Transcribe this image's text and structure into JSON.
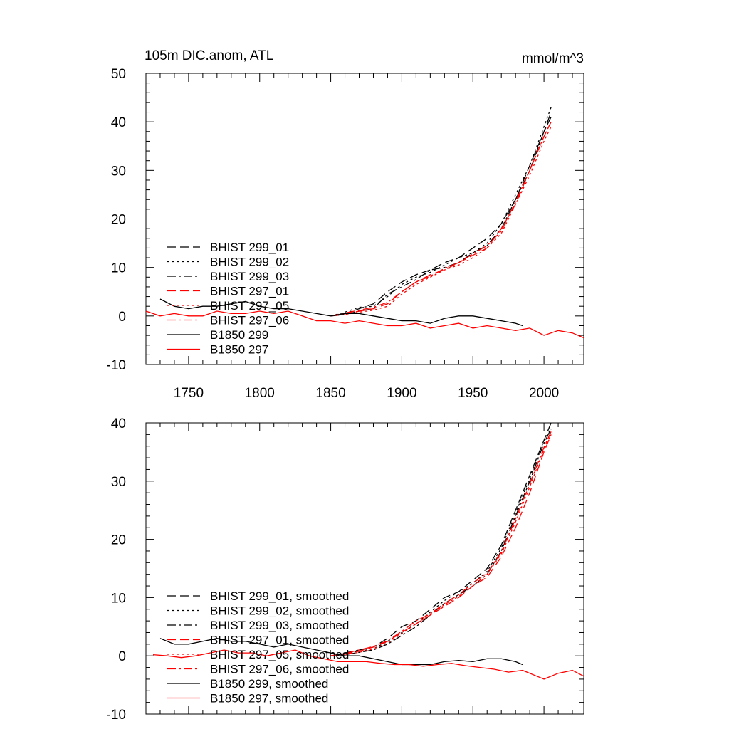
{
  "chart_data": [
    {
      "type": "line",
      "title": "105m DIC.anom, ATL",
      "units": "mmol/m^3",
      "xlim": [
        1720,
        2028
      ],
      "ylim": [
        -10,
        50
      ],
      "xticks": [
        1750,
        1800,
        1850,
        1900,
        1950,
        2000
      ],
      "xtick_labels": [
        "1750",
        "1800",
        "1850",
        "1900",
        "1950",
        "2000"
      ],
      "yticks": [
        -10,
        0,
        10,
        20,
        30,
        40,
        50
      ],
      "ytick_labels": [
        "-10",
        "0",
        "10",
        "20",
        "30",
        "40",
        "50"
      ],
      "legend_position": "left",
      "series": [
        {
          "name": "BHIST 299_01",
          "color": "#000000",
          "style": "dash",
          "x": [
            1850,
            1860,
            1870,
            1880,
            1890,
            1900,
            1910,
            1920,
            1930,
            1940,
            1950,
            1960,
            1970,
            1980,
            1990,
            2000,
            2005
          ],
          "y": [
            0,
            0.5,
            1.5,
            2.5,
            5,
            7,
            8.5,
            9.5,
            11,
            12,
            14,
            16,
            19,
            24,
            31,
            38,
            42
          ]
        },
        {
          "name": "BHIST 299_02",
          "color": "#000000",
          "style": "dot",
          "x": [
            1850,
            1860,
            1870,
            1880,
            1890,
            1900,
            1910,
            1920,
            1930,
            1940,
            1950,
            1960,
            1970,
            1980,
            1990,
            2000,
            2005
          ],
          "y": [
            0,
            0.8,
            1.8,
            2,
            4,
            6.5,
            8,
            9,
            10.5,
            12,
            13,
            15,
            19,
            25,
            31,
            39,
            43
          ]
        },
        {
          "name": "BHIST 299_03",
          "color": "#000000",
          "style": "dashdot",
          "x": [
            1850,
            1860,
            1870,
            1880,
            1890,
            1900,
            1910,
            1920,
            1930,
            1940,
            1950,
            1960,
            1970,
            1980,
            1990,
            2000,
            2005
          ],
          "y": [
            0,
            0.3,
            1,
            1.5,
            4.5,
            6,
            7.5,
            9.5,
            10,
            11,
            13,
            14.5,
            18,
            24,
            30,
            38,
            41
          ]
        },
        {
          "name": "BHIST 297_01",
          "color": "#ff0000",
          "style": "dash",
          "x": [
            1850,
            1860,
            1870,
            1880,
            1890,
            1900,
            1910,
            1920,
            1930,
            1940,
            1950,
            1960,
            1970,
            1980,
            1990,
            2000,
            2005
          ],
          "y": [
            0,
            0.5,
            1,
            1.5,
            2.5,
            5,
            7,
            8.5,
            9.5,
            11,
            12.5,
            14,
            18,
            23,
            30,
            37,
            40
          ]
        },
        {
          "name": "BHIST 297_05",
          "color": "#ff0000",
          "style": "dot",
          "x": [
            1850,
            1860,
            1870,
            1880,
            1890,
            1900,
            1910,
            1920,
            1930,
            1940,
            1950,
            1960,
            1970,
            1980,
            1990,
            2000,
            2005
          ],
          "y": [
            0,
            0.3,
            0.8,
            1.2,
            2,
            4.5,
            6.5,
            8,
            9.5,
            10.5,
            12,
            14,
            17,
            23,
            29,
            36,
            39
          ]
        },
        {
          "name": "BHIST 297_06",
          "color": "#ff0000",
          "style": "dashdot",
          "x": [
            1850,
            1860,
            1870,
            1880,
            1890,
            1900,
            1910,
            1920,
            1930,
            1940,
            1950,
            1960,
            1970,
            1980,
            1990,
            2000,
            2005
          ],
          "y": [
            0,
            0.6,
            1.2,
            1.8,
            2.8,
            5,
            7,
            8.2,
            9.8,
            11,
            12.8,
            14.5,
            17.5,
            23.5,
            30,
            37,
            40
          ]
        },
        {
          "name": "B1850 299",
          "color": "#000000",
          "style": "solid",
          "x": [
            1730,
            1740,
            1750,
            1760,
            1770,
            1780,
            1790,
            1800,
            1810,
            1820,
            1830,
            1840,
            1850,
            1860,
            1870,
            1880,
            1890,
            1900,
            1910,
            1920,
            1930,
            1940,
            1950,
            1960,
            1970,
            1980,
            1985
          ],
          "y": [
            3.5,
            2,
            1.5,
            2,
            2,
            2.5,
            3,
            2,
            1.5,
            1.5,
            1,
            0.5,
            0,
            0.5,
            0.5,
            0,
            -0.5,
            -1,
            -1,
            -1.5,
            -0.5,
            0,
            0,
            -0.5,
            -1,
            -1.5,
            -2
          ]
        },
        {
          "name": "B1850 297",
          "color": "#ff0000",
          "style": "solid",
          "x": [
            1720,
            1730,
            1740,
            1750,
            1760,
            1770,
            1780,
            1790,
            1800,
            1810,
            1820,
            1830,
            1840,
            1850,
            1860,
            1870,
            1880,
            1890,
            1900,
            1910,
            1920,
            1930,
            1940,
            1950,
            1960,
            1970,
            1980,
            1990,
            2000,
            2010,
            2020,
            2028
          ],
          "y": [
            1,
            0,
            0.5,
            0,
            0,
            1,
            0.5,
            0.5,
            1,
            0.5,
            1,
            0,
            -1,
            -1,
            -1.5,
            -1,
            -1.5,
            -2,
            -2,
            -1.5,
            -2.5,
            -2,
            -1.5,
            -2.5,
            -2,
            -2.5,
            -3,
            -2.5,
            -4,
            -3,
            -3.5,
            -4.5
          ]
        }
      ]
    },
    {
      "type": "line",
      "title": "",
      "xlim": [
        1720,
        2028
      ],
      "ylim": [
        -10,
        40
      ],
      "xticks": [
        1750,
        1800,
        1850,
        1900,
        1950,
        2000
      ],
      "yticks": [
        -10,
        0,
        10,
        20,
        30,
        40
      ],
      "ytick_labels": [
        "-10",
        "0",
        "10",
        "20",
        "30",
        "40"
      ],
      "legend_position": "left",
      "series": [
        {
          "name": "BHIST 299_01, smoothed",
          "color": "#000000",
          "style": "dash",
          "x": [
            1850,
            1860,
            1870,
            1880,
            1890,
            1900,
            1910,
            1920,
            1930,
            1940,
            1950,
            1960,
            1970,
            1980,
            1990,
            2000,
            2005
          ],
          "y": [
            0,
            0.5,
            1,
            1.5,
            3,
            5,
            6,
            8,
            10,
            11,
            13,
            15,
            19,
            25,
            31,
            37,
            40
          ]
        },
        {
          "name": "BHIST 299_02, smoothed",
          "color": "#000000",
          "style": "dot",
          "x": [
            1850,
            1860,
            1870,
            1880,
            1890,
            1900,
            1910,
            1920,
            1930,
            1940,
            1950,
            1960,
            1970,
            1980,
            1990,
            2000,
            2005
          ],
          "y": [
            0,
            0.4,
            0.8,
            1.2,
            2.5,
            4,
            5.5,
            7.5,
            9.5,
            11,
            12.5,
            14.5,
            18.5,
            24.5,
            30.5,
            37,
            39
          ]
        },
        {
          "name": "BHIST 299_03, smoothed",
          "color": "#000000",
          "style": "dashdot",
          "x": [
            1850,
            1860,
            1870,
            1880,
            1890,
            1900,
            1910,
            1920,
            1930,
            1940,
            1950,
            1960,
            1970,
            1980,
            1990,
            2000,
            2005
          ],
          "y": [
            0,
            0.2,
            0.6,
            1,
            2,
            3.5,
            5,
            7,
            9,
            10.5,
            12,
            14,
            18,
            24,
            30,
            36.5,
            39
          ]
        },
        {
          "name": "BHIST 297_01, smoothed",
          "color": "#ff0000",
          "style": "dash",
          "x": [
            1850,
            1860,
            1870,
            1880,
            1890,
            1900,
            1910,
            1920,
            1930,
            1940,
            1950,
            1960,
            1970,
            1980,
            1990,
            2000,
            2005
          ],
          "y": [
            0,
            0.3,
            0.8,
            1.5,
            2.5,
            4,
            5.5,
            7,
            8.5,
            10,
            12,
            13.5,
            17,
            22,
            28,
            35,
            38
          ]
        },
        {
          "name": "BHIST 297_05, smoothed",
          "color": "#ff0000",
          "style": "dot",
          "x": [
            1850,
            1860,
            1870,
            1880,
            1890,
            1900,
            1910,
            1920,
            1930,
            1940,
            1950,
            1960,
            1970,
            1980,
            1990,
            2000,
            2005
          ],
          "y": [
            0,
            0.2,
            0.6,
            1.2,
            2.2,
            3.8,
            5.5,
            7,
            8.8,
            10.2,
            12,
            14,
            17.5,
            23,
            29,
            35.5,
            38
          ]
        },
        {
          "name": "BHIST 297_06, smoothed",
          "color": "#ff0000",
          "style": "dashdot",
          "x": [
            1850,
            1860,
            1870,
            1880,
            1890,
            1900,
            1910,
            1920,
            1930,
            1940,
            1950,
            1960,
            1970,
            1980,
            1990,
            2000,
            2005
          ],
          "y": [
            0,
            0.4,
            1,
            1.6,
            2.6,
            4.2,
            6,
            7.2,
            9,
            10.5,
            12.5,
            14.2,
            17.8,
            23.5,
            29.5,
            35.8,
            38.5
          ]
        },
        {
          "name": "B1850 299, smoothed",
          "color": "#000000",
          "style": "solid",
          "x": [
            1730,
            1740,
            1750,
            1760,
            1770,
            1780,
            1790,
            1800,
            1810,
            1820,
            1830,
            1840,
            1850,
            1860,
            1870,
            1880,
            1890,
            1900,
            1910,
            1920,
            1930,
            1940,
            1950,
            1960,
            1970,
            1980,
            1985
          ],
          "y": [
            3,
            2,
            2,
            2.5,
            3,
            2.5,
            2.5,
            2,
            1.5,
            2,
            1.5,
            1,
            0.5,
            0,
            0,
            -0.5,
            -1,
            -1.5,
            -1.5,
            -1.5,
            -1,
            -0.8,
            -1,
            -0.5,
            -0.5,
            -1,
            -1.5
          ]
        },
        {
          "name": "B1850 297, smoothed",
          "color": "#ff0000",
          "style": "solid",
          "x": [
            1725,
            1735,
            1745,
            1755,
            1765,
            1775,
            1785,
            1795,
            1805,
            1815,
            1825,
            1835,
            1845,
            1855,
            1865,
            1875,
            1885,
            1895,
            1905,
            1915,
            1925,
            1935,
            1945,
            1955,
            1965,
            1975,
            1985,
            1995,
            2000,
            2010,
            2020,
            2028
          ],
          "y": [
            0.2,
            0,
            -0.3,
            0,
            0.5,
            1,
            0.5,
            0.5,
            0,
            0.5,
            1,
            0,
            -0.5,
            -1,
            -1,
            -1,
            -1.3,
            -1.5,
            -1.5,
            -1.8,
            -1.5,
            -1.3,
            -1.7,
            -2,
            -2.3,
            -2.8,
            -2.5,
            -3.5,
            -4,
            -3,
            -2.5,
            -3.5
          ]
        }
      ]
    }
  ]
}
